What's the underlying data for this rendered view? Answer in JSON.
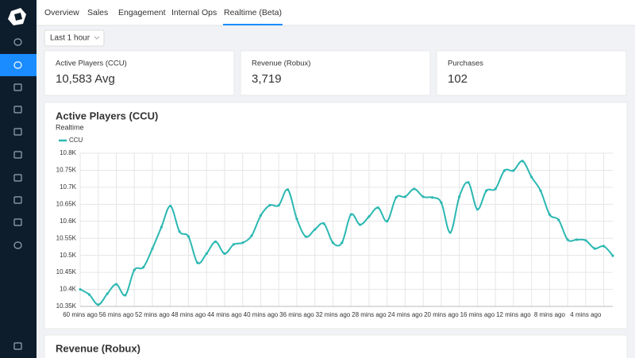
{
  "nav": {
    "tabs": [
      "Overview",
      "Sales",
      "Engagement",
      "Internal Ops",
      "Realtime (Beta)"
    ],
    "active_tab": 4
  },
  "filter": {
    "label": "Last 1 hour"
  },
  "stats": [
    {
      "label": "Active Players (CCU)",
      "value": "10,583 Avg"
    },
    {
      "label": "Revenue (Robux)",
      "value": "3,719"
    },
    {
      "label": "Purchases",
      "value": "102"
    }
  ],
  "chart_data": {
    "type": "line",
    "title": "Active Players (CCU)",
    "subtitle": "Realtime",
    "categories": [
      "60 mins ago",
      null,
      null,
      null,
      "56 mins ago",
      null,
      null,
      null,
      "52 mins ago",
      null,
      null,
      null,
      "48 mins ago",
      null,
      null,
      null,
      "44 mins ago",
      null,
      null,
      null,
      "40 mins ago",
      null,
      null,
      null,
      "36 mins ago",
      null,
      null,
      null,
      "32 mins ago",
      null,
      null,
      null,
      "28 mins ago",
      null,
      null,
      null,
      "24 mins ago",
      null,
      null,
      null,
      "20 mins ago",
      null,
      null,
      null,
      "16 mins ago",
      null,
      null,
      null,
      "12 mins ago",
      null,
      null,
      null,
      "8 mins ago",
      null,
      null,
      null,
      "4 mins ago",
      null,
      null,
      null
    ],
    "series": [
      {
        "name": "CCU",
        "color": "#2bb8b2",
        "values": [
          10400,
          10385,
          10355,
          10387,
          10415,
          10383,
          10457,
          10465,
          10520,
          10583,
          10645,
          10570,
          10555,
          10478,
          10505,
          10540,
          10505,
          10532,
          10537,
          10558,
          10617,
          10647,
          10647,
          10693,
          10607,
          10555,
          10576,
          10593,
          10537,
          10537,
          10620,
          10590,
          10614,
          10640,
          10600,
          10670,
          10672,
          10695,
          10672,
          10670,
          10655,
          10567,
          10672,
          10714,
          10635,
          10690,
          10695,
          10749,
          10749,
          10777,
          10730,
          10690,
          10620,
          10604,
          10546,
          10546,
          10544,
          10520,
          10527,
          10499
        ]
      }
    ],
    "ylim": [
      10350,
      10800
    ],
    "yticks": [
      {
        "value": 10350,
        "label": "10.35K"
      },
      {
        "value": 10400,
        "label": "10.4K"
      },
      {
        "value": 10450,
        "label": "10.45K"
      },
      {
        "value": 10500,
        "label": "10.5K"
      },
      {
        "value": 10550,
        "label": "10.55K"
      },
      {
        "value": 10600,
        "label": "10.6K"
      },
      {
        "value": 10650,
        "label": "10.65K"
      },
      {
        "value": 10700,
        "label": "10.7K"
      },
      {
        "value": 10750,
        "label": "10.75K"
      },
      {
        "value": 10800,
        "label": "10.8K"
      }
    ],
    "grid": true
  },
  "next_section": {
    "title": "Revenue (Robux)"
  }
}
